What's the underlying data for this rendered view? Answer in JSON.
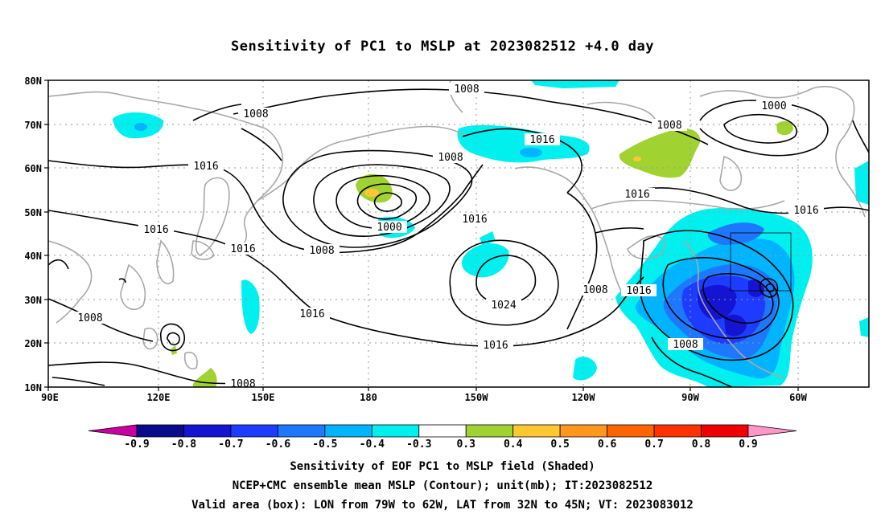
{
  "title": "Sensitivity of PC1 to MSLP at 2023082512 +4.0 day",
  "axes": {
    "lat_labels": [
      "80N",
      "70N",
      "60N",
      "50N",
      "40N",
      "30N",
      "20N",
      "10N"
    ],
    "lon_labels": [
      "90E",
      "120E",
      "150E",
      "180",
      "150W",
      "120W",
      "90W",
      "60W"
    ]
  },
  "contours": {
    "labels": [
      "1008",
      "1008",
      "1016",
      "1008",
      "1016",
      "1008",
      "1000",
      "1016",
      "1008",
      "1016",
      "1000",
      "1008",
      "1016",
      "1016",
      "1016",
      "1016",
      "1024",
      "1008",
      "1016",
      "1016",
      "1008",
      "1008"
    ]
  },
  "colorbar": {
    "labels": [
      "-0.9",
      "-0.8",
      "-0.7",
      "-0.6",
      "-0.5",
      "-0.4",
      "-0.3",
      "0.3",
      "0.4",
      "0.5",
      "0.6",
      "0.7",
      "0.8",
      "0.9"
    ],
    "colors": [
      "#c800a0",
      "#0a0a8c",
      "#1414d2",
      "#1e3cff",
      "#1e78ff",
      "#00b4ff",
      "#00f0f0",
      "#ffffff",
      "#a0d232",
      "#ffc832",
      "#ff961e",
      "#ff6400",
      "#ff3200",
      "#f00000",
      "#ff96c8"
    ]
  },
  "captions": {
    "line1": "Sensitivity of EOF PC1 to MSLP field (Shaded)",
    "line2": "NCEP+CMC ensemble mean MSLP (Contour); unit(mb); IT:2023082512",
    "line3": "Valid area (box): LON from 79W to 62W, LAT from 32N to 45N; VT: 2023083012"
  }
}
